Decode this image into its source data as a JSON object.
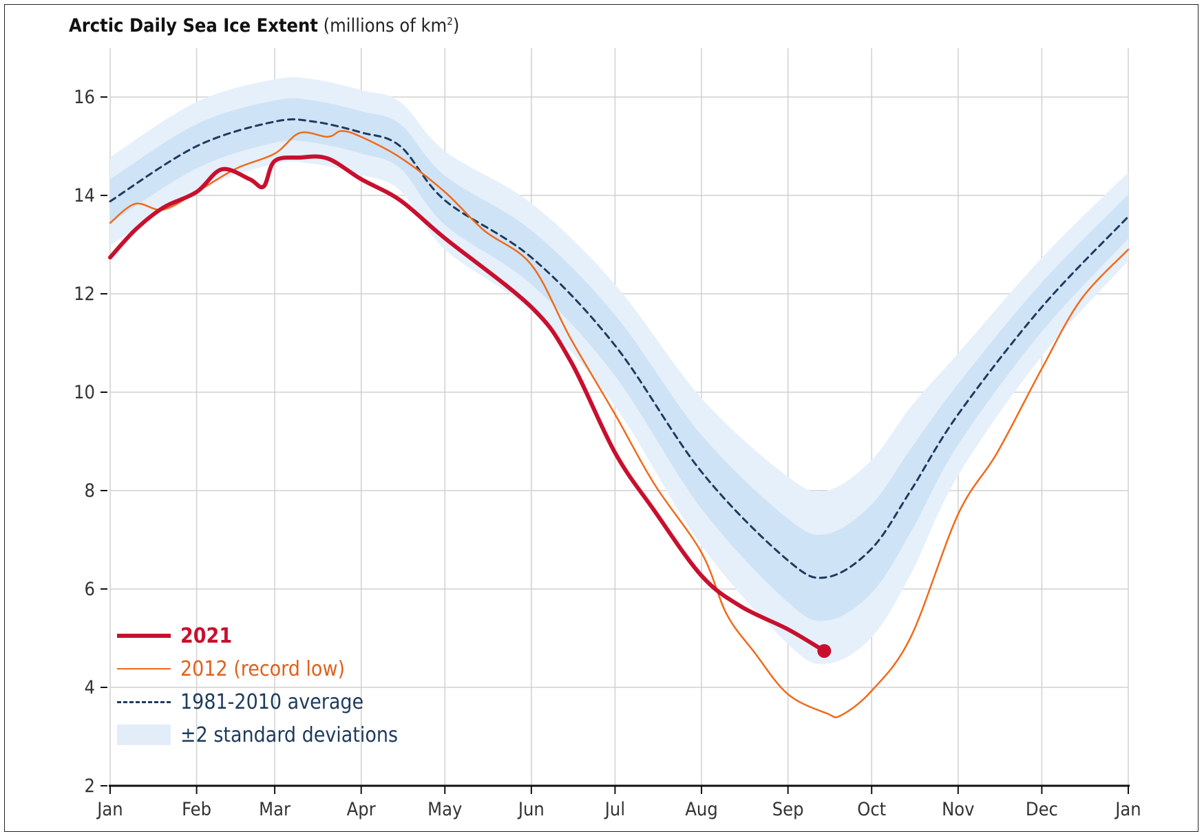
{
  "title": {
    "bold": "Arctic Daily Sea Ice Extent",
    "unit": "(millions of km",
    "unit_sup": "2",
    "unit_close": ")"
  },
  "colors": {
    "y2021": "#c8102e",
    "y2012": "#f06a1a",
    "average": "#1d3b5c",
    "band_inner": "#cfe3f6",
    "band_outer": "#e6f0fa",
    "grid": "#d0d0d0"
  },
  "legend": {
    "y2021": "2021",
    "y2012": "2012 (record low)",
    "average": "1981-2010 average",
    "band": "±2 standard deviations"
  },
  "chart_data": {
    "type": "line",
    "title": "Arctic Daily Sea Ice Extent (millions of km²)",
    "xlabel": "",
    "ylabel": "",
    "ylim": [
      2,
      16.8
    ],
    "yticks": [
      2,
      4,
      6,
      8,
      10,
      12,
      14,
      16
    ],
    "xticks": [
      "Jan",
      "Feb",
      "Mar",
      "Apr",
      "May",
      "Jun",
      "Jul",
      "Aug",
      "Sep",
      "Oct",
      "Nov",
      "Dec",
      "Jan"
    ],
    "grid": true,
    "legend_position": "bottom-left",
    "series": [
      {
        "name": "1981-2010 average",
        "style": "dashed",
        "x": [
          "01-01",
          "02-01",
          "03-01",
          "03-15",
          "04-01",
          "04-15",
          "05-01",
          "06-01",
          "07-01",
          "08-01",
          "09-01",
          "09-15",
          "10-01",
          "10-15",
          "11-01",
          "12-01",
          "12-31"
        ],
        "y": [
          13.88,
          15.0,
          15.5,
          15.5,
          15.28,
          15.0,
          13.9,
          12.74,
          10.95,
          8.38,
          6.58,
          6.24,
          6.82,
          8.0,
          9.55,
          11.73,
          13.57
        ],
        "sd": [
          0.45,
          0.45,
          0.43,
          0.43,
          0.43,
          0.45,
          0.5,
          0.55,
          0.62,
          0.75,
          0.85,
          0.88,
          0.9,
          0.85,
          0.62,
          0.5,
          0.45
        ]
      },
      {
        "name": "2021",
        "x": [
          "01-01",
          "01-10",
          "01-20",
          "02-01",
          "02-10",
          "02-20",
          "02-25",
          "03-01",
          "03-10",
          "03-20",
          "04-01",
          "04-15",
          "05-01",
          "06-01",
          "06-15",
          "07-01",
          "07-15",
          "08-01",
          "08-15",
          "09-01",
          "09-14"
        ],
        "y": [
          12.74,
          13.3,
          13.75,
          14.07,
          14.53,
          14.33,
          14.18,
          14.7,
          14.77,
          14.75,
          14.33,
          13.9,
          13.13,
          11.73,
          10.64,
          8.77,
          7.6,
          6.27,
          5.65,
          5.18,
          4.74
        ]
      },
      {
        "name": "2012 (record low)",
        "x": [
          "01-01",
          "01-10",
          "01-20",
          "02-01",
          "02-15",
          "03-01",
          "03-10",
          "03-20",
          "03-25",
          "04-01",
          "04-15",
          "05-01",
          "05-15",
          "06-01",
          "06-15",
          "07-01",
          "07-15",
          "08-01",
          "08-10",
          "08-20",
          "09-01",
          "09-15",
          "09-20",
          "10-01",
          "10-15",
          "11-01",
          "11-15",
          "12-01",
          "12-15",
          "12-31"
        ],
        "y": [
          13.44,
          13.83,
          13.71,
          14.07,
          14.54,
          14.85,
          15.27,
          15.19,
          15.31,
          15.19,
          14.77,
          14.07,
          13.29,
          12.59,
          11.1,
          9.55,
          8.14,
          6.74,
          5.49,
          4.71,
          3.86,
          3.47,
          3.43,
          3.93,
          5.02,
          7.52,
          8.77,
          10.48,
          11.88,
          12.9
        ]
      }
    ]
  }
}
